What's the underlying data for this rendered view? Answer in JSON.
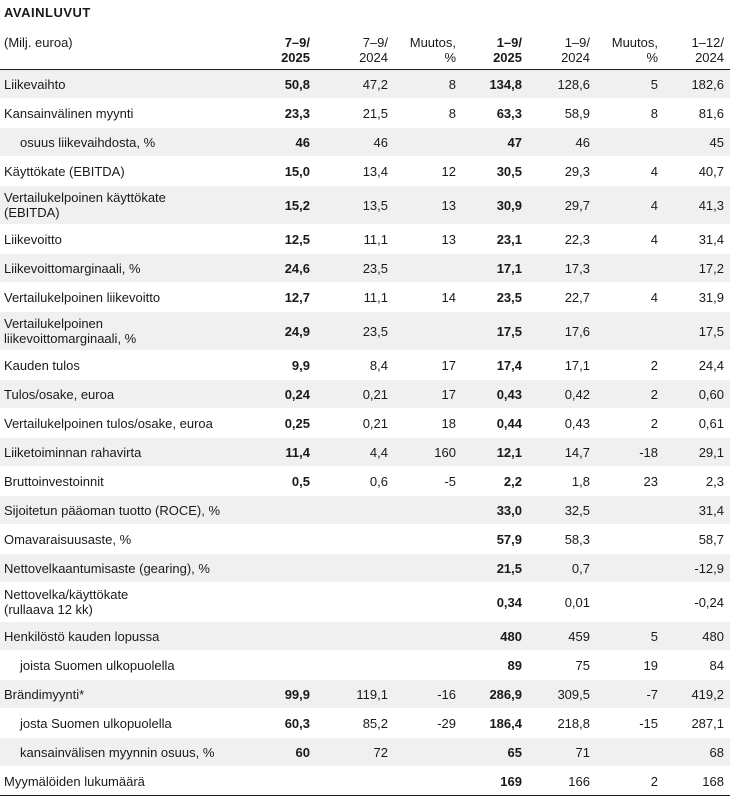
{
  "title": "AVAINLUVUT",
  "header": {
    "label": "(Milj. euroa)",
    "cols": [
      {
        "l1": "7–9/",
        "l2": "2025"
      },
      {
        "l1": "7–9/",
        "l2": "2024"
      },
      {
        "l1": "Muutos,",
        "l2": "%"
      },
      {
        "l1": "1–9/",
        "l2": "2025"
      },
      {
        "l1": "1–9/",
        "l2": "2024"
      },
      {
        "l1": "Muutos,",
        "l2": "%"
      },
      {
        "l1": "1–12/",
        "l2": "2024"
      }
    ]
  },
  "rows": [
    {
      "label": "Liikevaihto",
      "values": [
        "50,8",
        "47,2",
        "8",
        "134,8",
        "128,6",
        "5",
        "182,6"
      ]
    },
    {
      "label": "Kansainvälinen myynti",
      "values": [
        "23,3",
        "21,5",
        "8",
        "63,3",
        "58,9",
        "8",
        "81,6"
      ]
    },
    {
      "label": "osuus liikevaihdosta, %",
      "values": [
        "46",
        "46",
        "",
        "47",
        "46",
        "",
        "45"
      ]
    },
    {
      "label": "Käyttökate (EBITDA)",
      "values": [
        "15,0",
        "13,4",
        "12",
        "30,5",
        "29,3",
        "4",
        "40,7"
      ]
    },
    {
      "label": "Vertailukelpoinen käyttökate",
      "label2": "(EBITDA)",
      "values": [
        "15,2",
        "13,5",
        "13",
        "30,9",
        "29,7",
        "4",
        "41,3"
      ]
    },
    {
      "label": "Liikevoitto",
      "values": [
        "12,5",
        "11,1",
        "13",
        "23,1",
        "22,3",
        "4",
        "31,4"
      ]
    },
    {
      "label": "Liikevoittomarginaali, %",
      "values": [
        "24,6",
        "23,5",
        "",
        "17,1",
        "17,3",
        "",
        "17,2"
      ]
    },
    {
      "label": "Vertailukelpoinen liikevoitto",
      "values": [
        "12,7",
        "11,1",
        "14",
        "23,5",
        "22,7",
        "4",
        "31,9"
      ]
    },
    {
      "label": "Vertailukelpoinen",
      "label2": "liikevoittomarginaali, %",
      "values": [
        "24,9",
        "23,5",
        "",
        "17,5",
        "17,6",
        "",
        "17,5"
      ]
    },
    {
      "label": "Kauden tulos",
      "values": [
        "9,9",
        "8,4",
        "17",
        "17,4",
        "17,1",
        "2",
        "24,4"
      ]
    },
    {
      "label": "Tulos/osake, euroa",
      "values": [
        "0,24",
        "0,21",
        "17",
        "0,43",
        "0,42",
        "2",
        "0,60"
      ]
    },
    {
      "label": "Vertailukelpoinen tulos/osake, euroa",
      "values": [
        "0,25",
        "0,21",
        "18",
        "0,44",
        "0,43",
        "2",
        "0,61"
      ]
    },
    {
      "label": "Liiketoiminnan rahavirta",
      "values": [
        "11,4",
        "4,4",
        "160",
        "12,1",
        "14,7",
        "-18",
        "29,1"
      ]
    },
    {
      "label": "Bruttoinvestoinnit",
      "values": [
        "0,5",
        "0,6",
        "-5",
        "2,2",
        "1,8",
        "23",
        "2,3"
      ]
    },
    {
      "label": "Sijoitetun pääoman tuotto (ROCE), %",
      "values": [
        "",
        "",
        "",
        "33,0",
        "32,5",
        "",
        "31,4"
      ]
    },
    {
      "label": "Omavaraisuusaste, %",
      "values": [
        "",
        "",
        "",
        "57,9",
        "58,3",
        "",
        "58,7"
      ]
    },
    {
      "label": "Nettovelkaantumisaste (gearing), %",
      "values": [
        "",
        "",
        "",
        "21,5",
        "0,7",
        "",
        "-12,9"
      ]
    },
    {
      "label": "Nettovelka/käyttökate",
      "label2": "(rullaava 12 kk)",
      "values": [
        "",
        "",
        "",
        "0,34",
        "0,01",
        "",
        "-0,24"
      ]
    },
    {
      "label": "Henkilöstö kauden lopussa",
      "values": [
        "",
        "",
        "",
        "480",
        "459",
        "5",
        "480"
      ]
    },
    {
      "label": "joista Suomen ulkopuolella",
      "values": [
        "",
        "",
        "",
        "89",
        "75",
        "19",
        "84"
      ]
    },
    {
      "label": "Brändimyynti*",
      "values": [
        "99,9",
        "119,1",
        "-16",
        "286,9",
        "309,5",
        "-7",
        "419,2"
      ]
    },
    {
      "label": "josta Suomen ulkopuolella",
      "values": [
        "60,3",
        "85,2",
        "-29",
        "186,4",
        "218,8",
        "-15",
        "287,1"
      ]
    },
    {
      "label": "kansainvälisen myynnin osuus, %",
      "values": [
        "60",
        "72",
        "",
        "65",
        "71",
        "",
        "68"
      ]
    },
    {
      "label": "Myymälöiden lukumäärä",
      "values": [
        "",
        "",
        "",
        "169",
        "166",
        "2",
        "168"
      ]
    }
  ]
}
